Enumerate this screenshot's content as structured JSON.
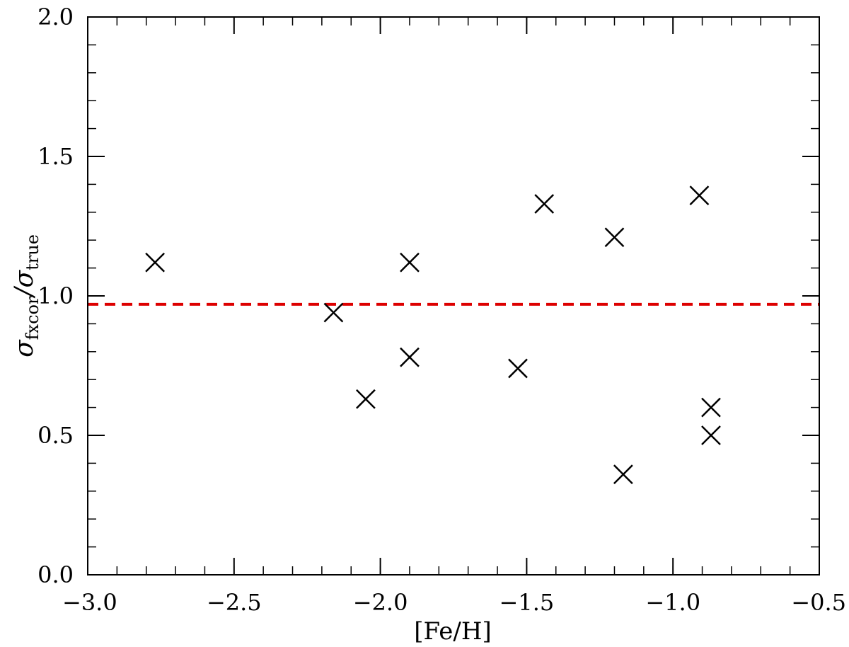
{
  "chart_data": {
    "type": "scatter",
    "xlabel": "[Fe/H]",
    "ylabel": {
      "symbol_numerator": "σ",
      "sub_numerator": "fxcor",
      "separator": "/",
      "symbol_denominator": "σ",
      "sub_denominator": "true"
    },
    "xlim": [
      -3.0,
      -0.5
    ],
    "ylim": [
      0.0,
      2.0
    ],
    "xticks": [
      -3.0,
      -2.5,
      -2.0,
      -1.5,
      -1.0,
      -0.5
    ],
    "xtick_labels": [
      "−3.0",
      "−2.5",
      "−2.0",
      "−1.5",
      "−1.0",
      "−0.5"
    ],
    "yticks": [
      0.0,
      0.5,
      1.0,
      1.5,
      2.0
    ],
    "ytick_labels": [
      "0.0",
      "0.5",
      "1.0",
      "1.5",
      "2.0"
    ],
    "x_minor_step": 0.1,
    "y_minor_step": 0.1,
    "marker": "x",
    "marker_color": "#000000",
    "points": [
      {
        "x": -2.77,
        "y": 1.12
      },
      {
        "x": -2.16,
        "y": 0.94
      },
      {
        "x": -2.05,
        "y": 0.63
      },
      {
        "x": -1.9,
        "y": 1.12
      },
      {
        "x": -1.9,
        "y": 0.78
      },
      {
        "x": -1.53,
        "y": 0.74
      },
      {
        "x": -1.44,
        "y": 1.33
      },
      {
        "x": -1.2,
        "y": 1.21
      },
      {
        "x": -1.17,
        "y": 0.36
      },
      {
        "x": -0.91,
        "y": 1.36
      },
      {
        "x": -0.87,
        "y": 0.6
      },
      {
        "x": -0.87,
        "y": 0.5
      }
    ],
    "reference_line": {
      "y": 0.97,
      "style": "dashed",
      "color": "#dd0000"
    },
    "grid": false,
    "legend": "none"
  }
}
